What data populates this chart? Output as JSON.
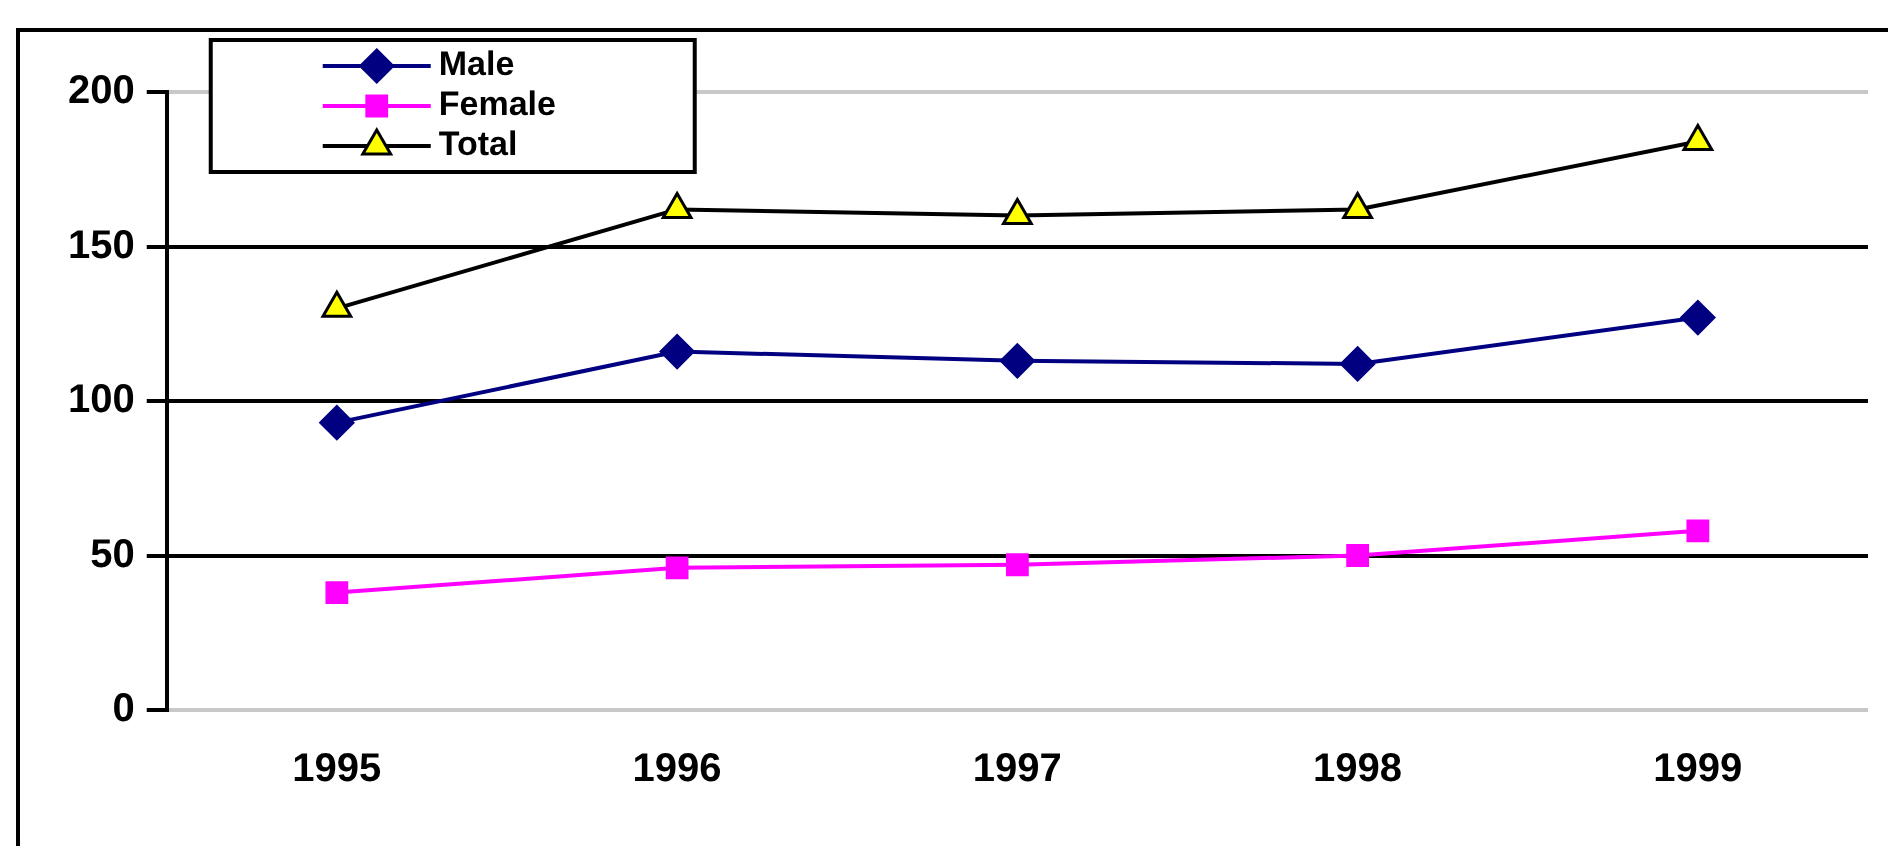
{
  "chart_data": {
    "type": "line",
    "categories": [
      "1995",
      "1996",
      "1997",
      "1998",
      "1999"
    ],
    "series": [
      {
        "name": "Male",
        "color": "#000080",
        "marker": "diamond",
        "values": [
          93,
          116,
          113,
          112,
          127
        ]
      },
      {
        "name": "Female",
        "color": "#ff00ff",
        "marker": "square",
        "values": [
          38,
          46,
          47,
          50,
          58
        ]
      },
      {
        "name": "Total",
        "color": "#000000",
        "colors": [
          "#ffff00",
          "#ffff00",
          "#ffff00",
          "#ffff00",
          "#ffff00"
        ],
        "marker": "triangle",
        "values": [
          130,
          162,
          160,
          162,
          184
        ]
      }
    ],
    "ylim": [
      0,
      200
    ],
    "yticks": [
      0,
      50,
      100,
      150,
      200
    ],
    "grid": "y",
    "legend": "top left"
  }
}
